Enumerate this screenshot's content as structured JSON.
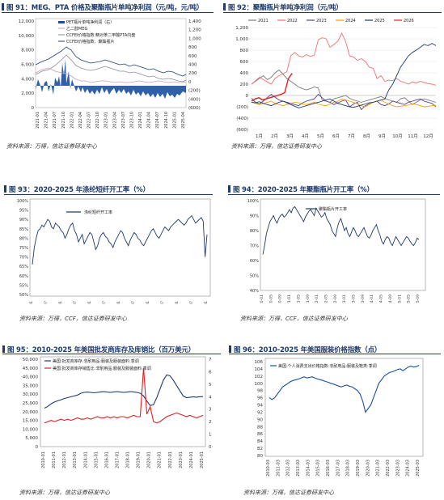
{
  "colors": {
    "navy": "#1f3a6b",
    "blue": "#1a4fa0",
    "red": "#e02020",
    "pink": "#f07070",
    "orange": "#f5a000",
    "gray": "#7a7a7a",
    "purple": "#5a3c8c",
    "darkblue": "#223d7a"
  },
  "p91": {
    "title": "图 91：MEG、PTA 价格及聚酯瓶片单吨净利润（元/吨，元/吨）",
    "source": "资料来源：万得，信达证券研发中心",
    "legend": [
      "PET瓶片单吨净利润（右）",
      "乙二醇MEG",
      "CCFEI价格指数:精对苯二甲酸PTA内盘",
      "CCFEI价格指数：聚酯瓶片"
    ],
    "chart_data": {
      "type": "line",
      "series_names": [
        "PET瓶片单吨净利润（右）",
        "乙二醇MEG",
        "CCFEI价格指数:精对苯二甲酸PTA内盘",
        "CCFEI价格指数：聚酯瓶片"
      ],
      "y_ticks_left": [
        "12,000",
        "10,000",
        "8,000",
        "6,000",
        "4,000",
        "2,000",
        "0"
      ],
      "y_ticks_right": [
        "1,400",
        "1,200",
        "1,000",
        "800",
        "600",
        "400",
        "200",
        "0",
        "(200)",
        "(400)",
        "(600)"
      ],
      "x_ticks": [
        "2021-01",
        "2021-04",
        "2021-07",
        "2021-10",
        "2022-01",
        "2022-04",
        "2022-07",
        "2022-10",
        "2023-01",
        "2023-04",
        "2023-07",
        "2023-10",
        "2024-01",
        "2024-04",
        "2024-07",
        "2024-10",
        "2025-01",
        "2025-04"
      ]
    }
  },
  "p92": {
    "title": "图 92：聚酯瓶片单吨净利润（元/吨）",
    "source": "资料来源：万得，信达证券研发中心",
    "chart_data": {
      "type": "line",
      "series_names": [
        "2021",
        "2022",
        "2023",
        "2024",
        "2025",
        "2026"
      ],
      "y_ticks": [
        "1,200",
        "1,000",
        "800",
        "600",
        "400",
        "200",
        "0",
        "(200)",
        "(400)",
        "(600)"
      ],
      "x_ticks": [
        "1月",
        "2月",
        "3月",
        "4月",
        "5月",
        "6月",
        "7月",
        "8月",
        "9月",
        "10月",
        "11月",
        "12月"
      ]
    }
  },
  "p93": {
    "title": "图 93：2020-2025 年涤纶短纤开工率（%）",
    "source": "资料来源：万得，CCF，信达证券研发中心",
    "legend": [
      "涤纶短纤开工率"
    ],
    "chart_data": {
      "type": "line",
      "series_names": [
        "涤纶短纤开工率"
      ],
      "y_ticks": [
        "100%",
        "95%",
        "90%",
        "85%",
        "80%",
        "75%",
        "70%",
        "65%",
        "60%",
        "55%",
        "50%"
      ],
      "x_ticks": [
        "2020-01",
        "2020-07",
        "2021-01",
        "2021-07",
        "2022-01",
        "2022-07",
        "2023-01",
        "2023-07",
        "2024-01",
        "2024-07",
        "2025-01",
        "2025-07",
        "2026-01"
      ]
    }
  },
  "p94": {
    "title": "图 94：2020-2025 年聚酯瓶片开工率（%）",
    "source": "资料来源：万得，CCF，信达证券研发中心",
    "legend": [
      "聚酯瓶片开工率"
    ],
    "chart_data": {
      "type": "line",
      "series_names": [
        "聚酯瓶片开工率"
      ],
      "y_ticks": [
        "100%",
        "90%",
        "80%",
        "70%",
        "60%",
        "50%",
        "40%"
      ],
      "x_ticks": [
        "2020-01",
        "2020-05",
        "2020-09",
        "2021-01",
        "2021-05",
        "2021-09",
        "2022-01",
        "2022-05",
        "2022-09",
        "2023-01",
        "2023-05",
        "2023-09",
        "2024-01",
        "2024-05",
        "2024-09",
        "2025-01",
        "2025-05",
        "2025-09"
      ]
    }
  },
  "p95": {
    "title": "图 95：2010-2025 年美国批发商库存及库销比（百万美元）",
    "source": "资料来源：万得，信达证券研发中心",
    "legend": [
      "美国:批发商库存:非耐用品:服装及服装面料:季调",
      "美国:批发商库存销售比:非耐用品:服装及服装面料:季调"
    ],
    "chart_data": {
      "type": "line",
      "series_names": [
        "美国:批发商库存:非耐用品:服装及服装面料:季调",
        "美国:批发商库存销售比:非耐用品:服装及服装面料:季调"
      ],
      "y_ticks_left": [
        "50,000",
        "45,000",
        "40,000",
        "35,000",
        "30,000",
        "25,000",
        "20,000",
        "15,000",
        "10,000",
        "5,000",
        "0"
      ],
      "y_ticks_right": [
        "7",
        "6",
        "5",
        "4",
        "3",
        "2",
        "1",
        "0"
      ],
      "x_ticks": [
        "2010-01",
        "2011-01",
        "2012-01",
        "2013-01",
        "2014-01",
        "2015-01",
        "2016-01",
        "2017-01",
        "2018-01",
        "2019-01",
        "2020-01",
        "2021-01",
        "2022-01",
        "2023-01",
        "2024-01",
        "2025-01"
      ]
    }
  },
  "p96": {
    "title": "图 96：2010-2025 年美国服装价格指数（点）",
    "source": "资料来源：万得，信达证券研发中心",
    "legend": [
      "美国:个人消费支出价格指数:非耐用品:服装及鞋类:季调"
    ],
    "chart_data": {
      "type": "line",
      "series_names": [
        "美国:个人消费支出价格指数:非耐用品:服装及鞋类:季调"
      ],
      "y_ticks": [
        "106",
        "104",
        "102",
        "100",
        "98",
        "96",
        "94",
        "92",
        "90",
        "88",
        "86",
        "84",
        "82",
        "80"
      ],
      "x_ticks": [
        "2010-03",
        "2011-03",
        "2012-03",
        "2013-03",
        "2014-03",
        "2015-03",
        "2016-03",
        "2017-03",
        "2018-03",
        "2019-03",
        "2020-03",
        "2021-03",
        "2022-03",
        "2023-03",
        "2024-03",
        "2025-03"
      ]
    }
  }
}
